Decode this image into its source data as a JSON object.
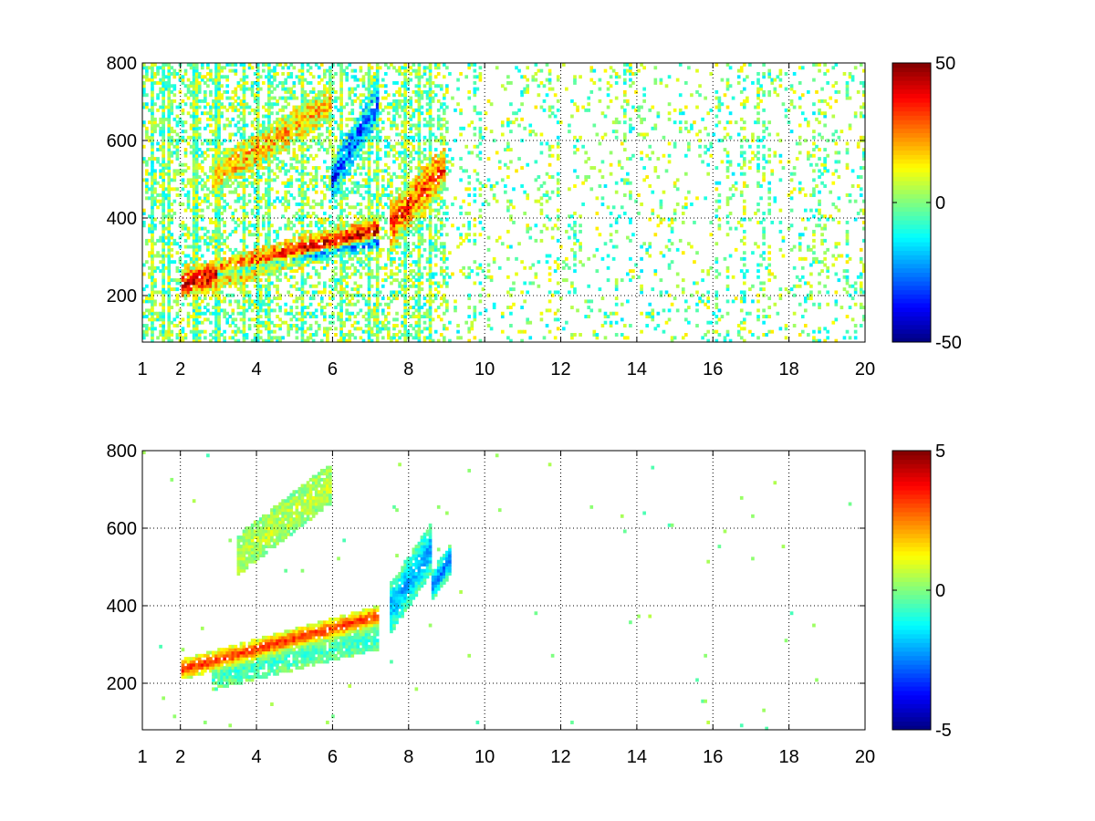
{
  "chart_data": [
    {
      "type": "heatmap",
      "title": "",
      "xlabel": "",
      "ylabel": "",
      "xlim": [
        1,
        20
      ],
      "ylim": [
        80,
        800
      ],
      "x_ticks": [
        1,
        2,
        4,
        6,
        8,
        10,
        12,
        14,
        16,
        18,
        20
      ],
      "x_tick_labels": [
        "1",
        "2",
        "4",
        "6",
        "8",
        "10",
        "12",
        "14",
        "16",
        "18",
        "20"
      ],
      "y_ticks": [
        200,
        400,
        600,
        800
      ],
      "y_tick_labels": [
        "200",
        "400",
        "600",
        "800"
      ],
      "grid": true,
      "colormap": "jet",
      "colorbar": {
        "min": -50,
        "max": 50,
        "tick_labels": [
          "50",
          "0",
          "-50"
        ]
      },
      "features": [
        {
          "x_range": [
            2.0,
            7.2
          ],
          "y_start": 230,
          "y_end": 370,
          "value": 40,
          "width": 28
        },
        {
          "x_range": [
            3.0,
            7.2
          ],
          "y_start": 255,
          "y_end": 340,
          "value": -40,
          "width": 12
        },
        {
          "x_range": [
            2.8,
            6.0
          ],
          "y_start": 500,
          "y_end": 700,
          "value": 18,
          "width": 35
        },
        {
          "x_range": [
            6.0,
            7.2
          ],
          "y_start": 500,
          "y_end": 700,
          "value": -28,
          "width": 40
        },
        {
          "x_range": [
            7.5,
            9.0
          ],
          "y_start": 380,
          "y_end": 540,
          "value": 30,
          "width": 45
        }
      ],
      "noise_level": 15
    },
    {
      "type": "heatmap",
      "title": "",
      "xlabel": "",
      "ylabel": "",
      "xlim": [
        1,
        20
      ],
      "ylim": [
        80,
        800
      ],
      "x_ticks": [
        1,
        2,
        4,
        6,
        8,
        10,
        12,
        14,
        16,
        18,
        20
      ],
      "x_tick_labels": [
        "1",
        "2",
        "4",
        "6",
        "8",
        "10",
        "12",
        "14",
        "16",
        "18",
        "20"
      ],
      "y_ticks": [
        200,
        400,
        600,
        800
      ],
      "y_tick_labels": [
        "200",
        "400",
        "600",
        "800"
      ],
      "grid": true,
      "colormap": "jet",
      "colorbar": {
        "min": -5,
        "max": 5,
        "tick_labels": [
          "5",
          "0",
          "-5"
        ]
      },
      "features": [
        {
          "x_range": [
            2.0,
            7.2
          ],
          "y_start": 235,
          "y_end": 375,
          "value": 3.2,
          "width": 20
        },
        {
          "x_range": [
            2.8,
            7.2
          ],
          "y_start": 215,
          "y_end": 320,
          "value": -0.6,
          "width": 25
        },
        {
          "x_range": [
            3.5,
            6.0
          ],
          "y_start": 530,
          "y_end": 720,
          "value": 0.6,
          "width": 40
        },
        {
          "x_range": [
            7.5,
            8.6
          ],
          "y_start": 390,
          "y_end": 550,
          "value": -2.0,
          "width": 50
        },
        {
          "x_range": [
            8.6,
            9.1
          ],
          "y_start": 450,
          "y_end": 520,
          "value": -2.5,
          "width": 30
        }
      ],
      "noise_level": 0.6
    }
  ]
}
